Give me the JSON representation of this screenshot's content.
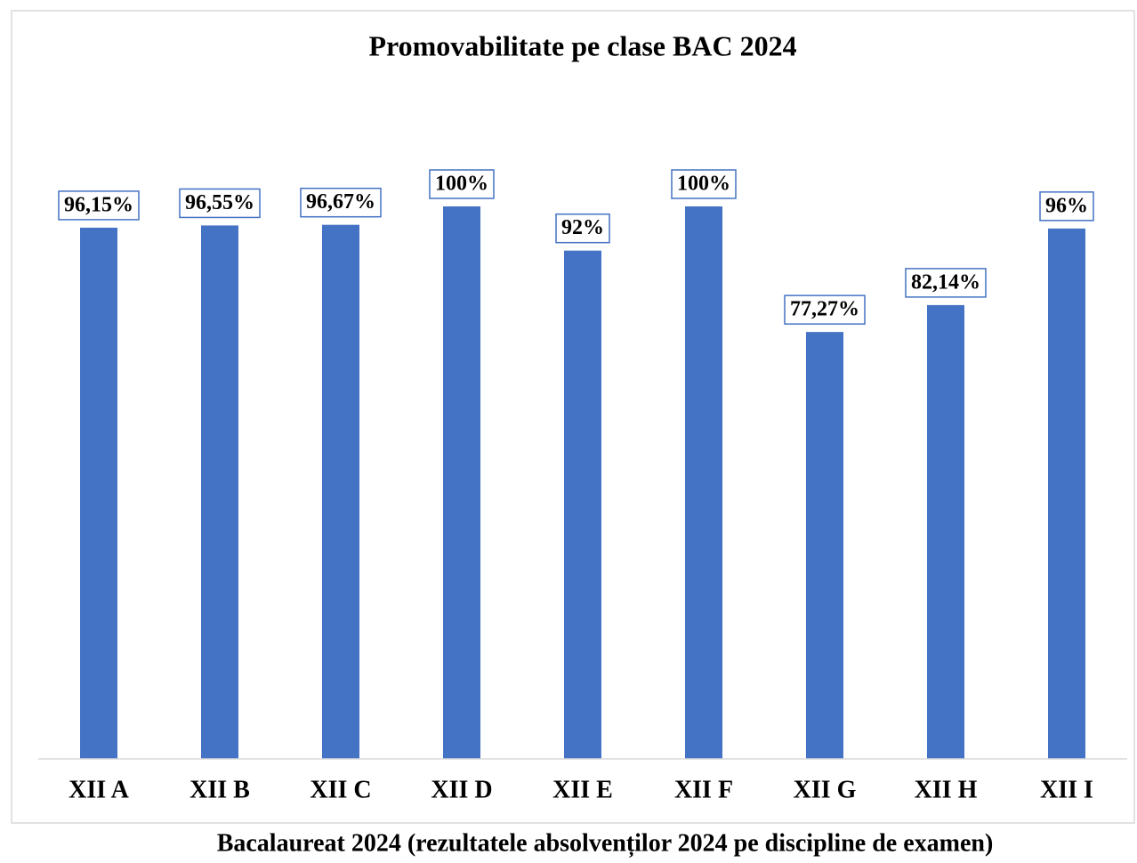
{
  "chart_data": {
    "type": "bar",
    "title": "Promovabilitate pe clase BAC 2024",
    "categories": [
      "XII A",
      "XII B",
      "XII C",
      "XII D",
      "XII E",
      "XII F",
      "XII G",
      "XII H",
      "XII I"
    ],
    "values": [
      96.15,
      96.55,
      96.67,
      100,
      92,
      100,
      77.27,
      82.14,
      96
    ],
    "value_labels": [
      "96,15%",
      "96,55%",
      "96,67%",
      "100%",
      "92%",
      "100%",
      "77,27%",
      "82,14%",
      "96%"
    ],
    "color": "#4472c4",
    "ylim": [
      0,
      100
    ]
  },
  "caption": "Bacalaureat 2024 (rezultatele absolvenților 2024 pe discipline de examen)"
}
